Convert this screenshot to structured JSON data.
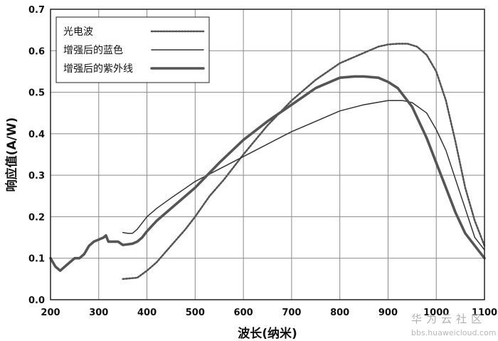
{
  "chart_data": {
    "type": "line",
    "title": "",
    "xlabel": "波长(纳米)",
    "ylabel": "响应值(A/W)",
    "xlim": [
      200,
      1100
    ],
    "ylim": [
      0.0,
      0.7
    ],
    "xticks": [
      200,
      300,
      400,
      500,
      600,
      700,
      800,
      900,
      1000,
      1100
    ],
    "yticks": [
      0.0,
      0.1,
      0.2,
      0.3,
      0.4,
      0.5,
      0.6,
      0.7
    ],
    "xtick_labels": [
      "200",
      "300",
      "400",
      "500",
      "600",
      "700",
      "800",
      "900",
      "1000",
      "1100"
    ],
    "ytick_labels": [
      "0.0",
      "0.1",
      "0.2",
      "0.3",
      "0.4",
      "0.5",
      "0.6",
      "0.7"
    ],
    "grid": true,
    "legend_position": "top-left",
    "series": [
      {
        "name": "光电波",
        "style": "dotted",
        "color": "#555555",
        "x": [
          350,
          370,
          380,
          400,
          420,
          450,
          480,
          500,
          530,
          560,
          600,
          650,
          700,
          750,
          800,
          850,
          880,
          900,
          920,
          940,
          960,
          980,
          1000,
          1020,
          1040,
          1060,
          1080,
          1100
        ],
        "y": [
          0.05,
          0.052,
          0.053,
          0.07,
          0.09,
          0.13,
          0.17,
          0.2,
          0.25,
          0.29,
          0.35,
          0.42,
          0.48,
          0.53,
          0.57,
          0.595,
          0.61,
          0.615,
          0.617,
          0.617,
          0.61,
          0.59,
          0.55,
          0.48,
          0.38,
          0.27,
          0.19,
          0.13
        ]
      },
      {
        "name": "增强后的蓝色",
        "style": "thin",
        "color": "#333333",
        "x": [
          350,
          360,
          370,
          380,
          400,
          420,
          450,
          500,
          550,
          600,
          650,
          700,
          750,
          800,
          850,
          900,
          930,
          950,
          980,
          1000,
          1020,
          1040,
          1060,
          1080,
          1100
        ],
        "y": [
          0.162,
          0.16,
          0.16,
          0.17,
          0.2,
          0.22,
          0.245,
          0.285,
          0.315,
          0.345,
          0.375,
          0.405,
          0.43,
          0.455,
          0.47,
          0.48,
          0.48,
          0.475,
          0.45,
          0.41,
          0.36,
          0.29,
          0.22,
          0.15,
          0.12
        ]
      },
      {
        "name": "增强后的紫外线",
        "style": "thick",
        "color": "#555555",
        "x": [
          200,
          210,
          220,
          230,
          240,
          250,
          260,
          270,
          280,
          290,
          300,
          310,
          315,
          320,
          330,
          340,
          350,
          370,
          380,
          390,
          400,
          420,
          450,
          480,
          500,
          550,
          600,
          650,
          700,
          750,
          800,
          830,
          850,
          880,
          900,
          920,
          950,
          980,
          1000,
          1020,
          1040,
          1060,
          1080,
          1100
        ],
        "y": [
          0.1,
          0.08,
          0.07,
          0.08,
          0.09,
          0.1,
          0.1,
          0.11,
          0.13,
          0.14,
          0.145,
          0.15,
          0.155,
          0.14,
          0.14,
          0.14,
          0.132,
          0.135,
          0.14,
          0.15,
          0.165,
          0.19,
          0.22,
          0.25,
          0.27,
          0.33,
          0.385,
          0.43,
          0.47,
          0.51,
          0.535,
          0.538,
          0.538,
          0.535,
          0.525,
          0.51,
          0.465,
          0.39,
          0.33,
          0.27,
          0.21,
          0.16,
          0.13,
          0.1
        ]
      }
    ],
    "watermark": {
      "main": "华为云社区",
      "sub": "bbs.huaweicloud.com"
    }
  }
}
